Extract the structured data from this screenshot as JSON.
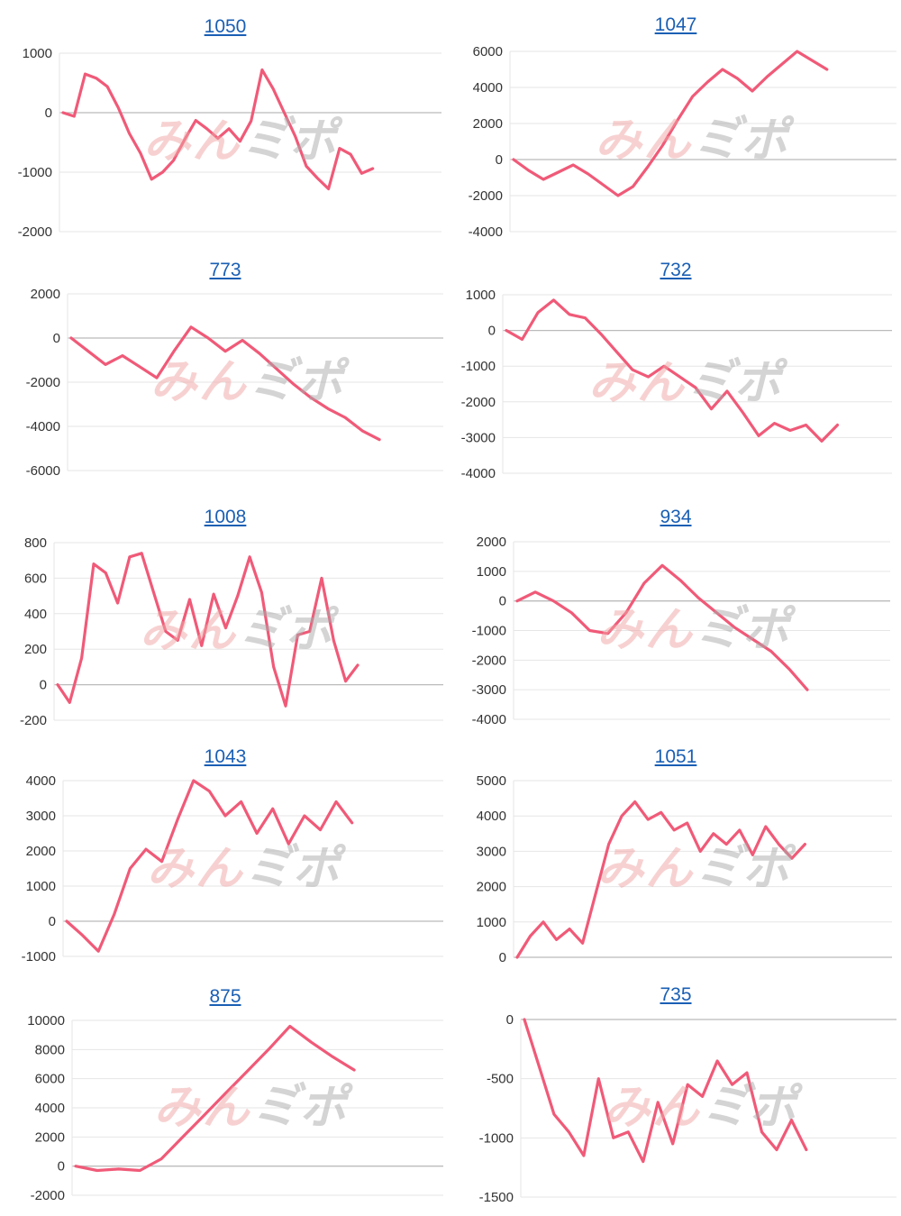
{
  "watermark": {
    "part1": "みん",
    "part2": "ミ゙ポ"
  },
  "colors": {
    "line": "#f05a78",
    "grid": "#e6e6e6",
    "zero": "#bbbbbb",
    "title": "#1a5fb4"
  },
  "chart_data": [
    {
      "type": "line",
      "title": "1050",
      "ylim": [
        -2000,
        1000
      ],
      "ticks": [
        1000,
        0,
        -1000,
        -2000
      ],
      "values": [
        0,
        -60,
        650,
        580,
        440,
        80,
        -350,
        -680,
        -1120,
        -1000,
        -800,
        -450,
        -130,
        -270,
        -430,
        -270,
        -480,
        -140,
        720,
        400,
        0,
        -400,
        -900,
        -1100,
        -1280,
        -600,
        -700,
        -1020,
        -940
      ]
    },
    {
      "type": "line",
      "title": "1047",
      "ylim": [
        -4000,
        6000
      ],
      "ticks": [
        6000,
        4000,
        2000,
        0,
        -2000,
        -4000
      ],
      "values": [
        0,
        -600,
        -1100,
        -700,
        -300,
        -800,
        -1400,
        -2000,
        -1500,
        -400,
        800,
        2200,
        3500,
        4300,
        5000,
        4500,
        3800,
        4600,
        5300,
        6000,
        5500,
        5000
      ]
    },
    {
      "type": "line",
      "title": "773",
      "ylim": [
        -6000,
        2000
      ],
      "ticks": [
        2000,
        0,
        -2000,
        -4000,
        -6000
      ],
      "values": [
        0,
        -600,
        -1200,
        -800,
        -1300,
        -1800,
        -600,
        500,
        0,
        -600,
        -100,
        -700,
        -1400,
        -2100,
        -2700,
        -3200,
        -3600,
        -4200,
        -4600
      ]
    },
    {
      "type": "line",
      "title": "732",
      "ylim": [
        -4000,
        1000
      ],
      "ticks": [
        1000,
        0,
        -1000,
        -2000,
        -3000,
        -4000
      ],
      "values": [
        0,
        -250,
        500,
        850,
        450,
        350,
        -100,
        -600,
        -1100,
        -1300,
        -1000,
        -1300,
        -1600,
        -2200,
        -1700,
        -2300,
        -2950,
        -2600,
        -2800,
        -2650,
        -3100,
        -2650
      ]
    },
    {
      "type": "line",
      "title": "1008",
      "ylim": [
        -200,
        800
      ],
      "ticks": [
        800,
        600,
        400,
        200,
        0,
        -200
      ],
      "values": [
        0,
        -100,
        150,
        680,
        630,
        460,
        720,
        740,
        520,
        300,
        250,
        480,
        220,
        510,
        320,
        500,
        720,
        520,
        100,
        -120,
        280,
        300,
        600,
        250,
        20,
        110
      ]
    },
    {
      "type": "line",
      "title": "934",
      "ylim": [
        -4000,
        2000
      ],
      "ticks": [
        2000,
        1000,
        0,
        -1000,
        -2000,
        -3000,
        -4000
      ],
      "values": [
        0,
        300,
        0,
        -400,
        -1000,
        -1100,
        -400,
        600,
        1200,
        700,
        100,
        -400,
        -900,
        -1300,
        -1700,
        -2300,
        -3000
      ]
    },
    {
      "type": "line",
      "title": "1043",
      "ylim": [
        -1000,
        4000
      ],
      "ticks": [
        4000,
        3000,
        2000,
        1000,
        0,
        -1000
      ],
      "values": [
        0,
        -400,
        -850,
        200,
        1500,
        2050,
        1700,
        2900,
        4000,
        3700,
        3000,
        3400,
        2500,
        3200,
        2200,
        3000,
        2600,
        3400,
        2800
      ]
    },
    {
      "type": "line",
      "title": "1051",
      "ylim": [
        0,
        5000
      ],
      "ticks": [
        5000,
        4000,
        3000,
        2000,
        1000,
        0
      ],
      "values": [
        0,
        600,
        1000,
        500,
        800,
        400,
        1800,
        3200,
        4000,
        4400,
        3900,
        4100,
        3600,
        3800,
        3000,
        3500,
        3200,
        3600,
        2900,
        3700,
        3200,
        2800,
        3200
      ]
    },
    {
      "type": "line",
      "title": "875",
      "ylim": [
        -2000,
        10000
      ],
      "ticks": [
        10000,
        8000,
        6000,
        4000,
        2000,
        0,
        -2000
      ],
      "values": [
        0,
        -300,
        -200,
        -300,
        500,
        2000,
        3500,
        5000,
        6500,
        8000,
        9600,
        8500,
        7500,
        6600
      ]
    },
    {
      "type": "line",
      "title": "735",
      "ylim": [
        -1500,
        0
      ],
      "ticks": [
        0,
        -500,
        -1000,
        -1500
      ],
      "values": [
        0,
        -400,
        -800,
        -950,
        -1150,
        -500,
        -1000,
        -950,
        -1200,
        -700,
        -1050,
        -550,
        -650,
        -350,
        -550,
        -450,
        -950,
        -1100,
        -850,
        -1100
      ]
    }
  ]
}
